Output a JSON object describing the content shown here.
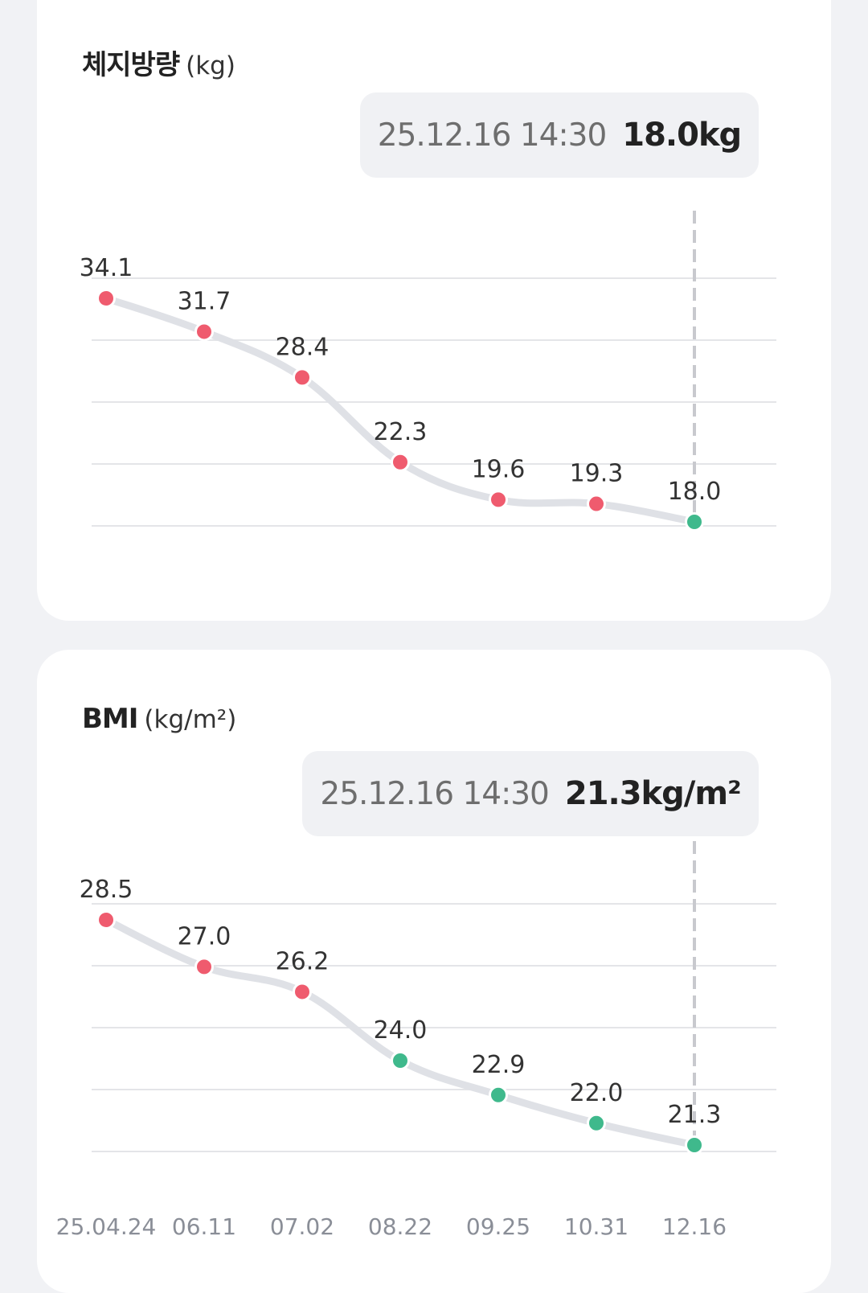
{
  "cards": [
    {
      "id": "fat",
      "title": "체지방량",
      "unit": "(kg)",
      "tooltip": {
        "date": "25.12.16 14:30",
        "value": "18.0kg"
      },
      "chart_data": {
        "type": "line",
        "title": "체지방량 (kg)",
        "categories": [
          "25.04.24",
          "06.11",
          "07.02",
          "08.22",
          "09.25",
          "10.31",
          "12.16"
        ],
        "values": [
          34.1,
          31.7,
          28.4,
          22.3,
          19.6,
          19.3,
          18.0
        ],
        "labels": [
          "34.1",
          "31.7",
          "28.4",
          "22.3",
          "19.6",
          "19.3",
          "18.0"
        ],
        "point_status": [
          "high",
          "high",
          "high",
          "high",
          "high",
          "high",
          "normal"
        ],
        "selected_index": 6,
        "grid": true,
        "colors": {
          "high": "#ef5b6e",
          "normal": "#3fb98c",
          "line": "#dfe1e6"
        }
      }
    },
    {
      "id": "bmi",
      "title": "BMI",
      "unit": "(kg/m²)",
      "tooltip": {
        "date": "25.12.16 14:30",
        "value": "21.3kg/m²"
      },
      "chart_data": {
        "type": "line",
        "title": "BMI (kg/m²)",
        "categories": [
          "25.04.24",
          "06.11",
          "07.02",
          "08.22",
          "09.25",
          "10.31",
          "12.16"
        ],
        "values": [
          28.5,
          27.0,
          26.2,
          24.0,
          22.9,
          22.0,
          21.3
        ],
        "labels": [
          "28.5",
          "27.0",
          "26.2",
          "24.0",
          "22.9",
          "22.0",
          "21.3"
        ],
        "point_status": [
          "high",
          "high",
          "high",
          "normal",
          "normal",
          "normal",
          "normal"
        ],
        "selected_index": 6,
        "grid": true,
        "colors": {
          "high": "#ef5b6e",
          "normal": "#3fb98c",
          "line": "#dfe1e6"
        }
      }
    }
  ]
}
